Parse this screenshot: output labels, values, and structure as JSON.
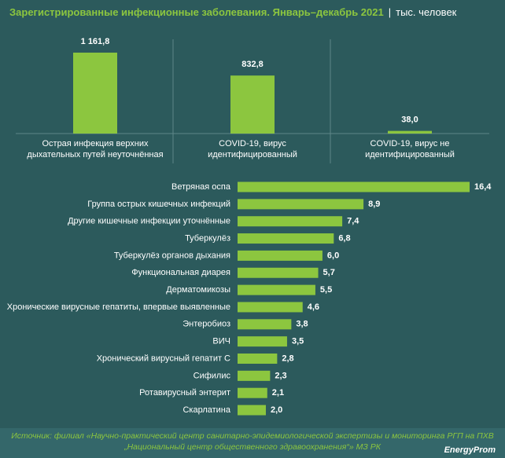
{
  "header": {
    "title": "Зарегистрированные инфекционные заболевания. Январь–декабрь 2021",
    "unit": "тыс. человек"
  },
  "chart_data": [
    {
      "type": "bar",
      "orientation": "vertical",
      "color": "#8cc63f",
      "categories": [
        "Острая инфекция верхних дыхательных путей неуточнённая",
        "COVID-19, вирус идентифицированный",
        "COVID-19, вирус не идентифицированный"
      ],
      "values": [
        1161.8,
        832.8,
        38.0
      ],
      "value_labels": [
        "1 161,8",
        "832,8",
        "38,0"
      ]
    },
    {
      "type": "bar",
      "orientation": "horizontal",
      "color": "#8cc63f",
      "categories": [
        "Ветряная оспа",
        "Группа острых кишечных инфекций",
        "Другие кишечные инфекции уточнённые",
        "Туберкулёз",
        "Туберкулёз органов дыхания",
        "Функциональная диарея",
        "Дерматомикозы",
        "Хронические вирусные гепатиты, впервые выявленные",
        "Энтеробиоз",
        "ВИЧ",
        "Хронический вирусный гепатит С",
        "Сифилис",
        "Ротавирусный энтерит",
        "Скарлатина"
      ],
      "values": [
        16.4,
        8.9,
        7.4,
        6.8,
        6.0,
        5.7,
        5.5,
        4.6,
        3.8,
        3.5,
        2.8,
        2.3,
        2.1,
        2.0
      ],
      "value_labels": [
        "16,4",
        "8,9",
        "7,4",
        "6,8",
        "6,0",
        "5,7",
        "5,5",
        "4,6",
        "3,8",
        "3,5",
        "2,8",
        "2,3",
        "2,1",
        "2,0"
      ]
    }
  ],
  "footer": {
    "source": "Источник: филиал «Научно-практический центр санитарно-эпидемиологической экспертизы и мониторинга РГП на ПХВ „Национальный центр общественного здравоохранения“» МЗ РК",
    "brand": "EnergyProm"
  }
}
